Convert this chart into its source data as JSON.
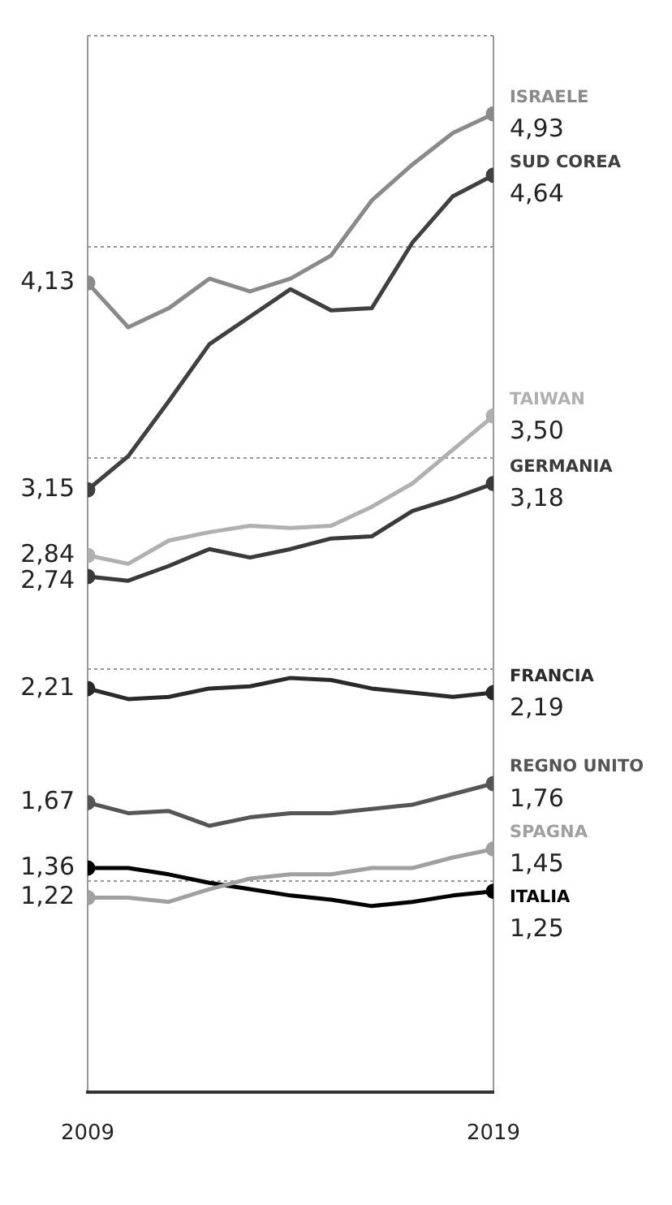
{
  "chart_data": {
    "type": "line",
    "x": [
      2009,
      2010,
      2011,
      2012,
      2013,
      2014,
      2015,
      2016,
      2017,
      2018,
      2019
    ],
    "xlim": [
      2009,
      2019
    ],
    "xticks": [
      2009,
      2019
    ],
    "ylim": [
      0.3,
      5.3
    ],
    "yticks": [
      {
        "value": 1.3,
        "label": null
      },
      {
        "value": 2.3,
        "label": null
      },
      {
        "value": 3.3,
        "label": null
      },
      {
        "value": 4.3,
        "label": null
      },
      {
        "value": 5.3,
        "label": null
      }
    ],
    "tick_labels": "x",
    "grid": true,
    "line_style": "solid",
    "legend": false,
    "series": [
      {
        "name": "ISRAELE",
        "color": "#8a8a8a",
        "values": [
          4.13,
          3.92,
          4.01,
          4.15,
          4.09,
          4.15,
          4.26,
          4.52,
          4.69,
          4.84,
          4.93
        ],
        "value_labels": [
          "4,13",
          null,
          null,
          null,
          null,
          null,
          null,
          null,
          null,
          null,
          "4,93"
        ]
      },
      {
        "name": "SUD COREA",
        "color": "#404040",
        "values": [
          3.15,
          3.31,
          3.57,
          3.84,
          3.97,
          4.1,
          4.0,
          4.01,
          4.32,
          4.54,
          4.64
        ],
        "value_labels": [
          "3,15",
          null,
          null,
          null,
          null,
          null,
          null,
          null,
          null,
          null,
          "4,64"
        ]
      },
      {
        "name": "TAIWAN",
        "color": "#b0b0b0",
        "values": [
          2.84,
          2.8,
          2.91,
          2.95,
          2.98,
          2.97,
          2.98,
          3.07,
          3.18,
          3.34,
          3.5
        ],
        "value_labels": [
          "2,84",
          null,
          null,
          null,
          null,
          null,
          null,
          null,
          null,
          null,
          "3,50"
        ]
      },
      {
        "name": "GERMANIA",
        "color": "#3a3a3a",
        "values": [
          2.74,
          2.72,
          2.79,
          2.87,
          2.83,
          2.87,
          2.92,
          2.93,
          3.05,
          3.11,
          3.18
        ],
        "value_labels": [
          "2,74",
          null,
          null,
          null,
          null,
          null,
          null,
          null,
          null,
          null,
          "3,18"
        ]
      },
      {
        "name": "FRANCIA",
        "color": "#2a2a2a",
        "values": [
          2.21,
          2.16,
          2.17,
          2.21,
          2.22,
          2.26,
          2.25,
          2.21,
          2.19,
          2.17,
          2.19
        ],
        "value_labels": [
          "2,21",
          null,
          null,
          null,
          null,
          null,
          null,
          null,
          null,
          null,
          "2,19"
        ]
      },
      {
        "name": "REGNO UNITO",
        "color": "#555555",
        "values": [
          1.67,
          1.62,
          1.63,
          1.56,
          1.6,
          1.62,
          1.62,
          1.64,
          1.66,
          1.71,
          1.76
        ],
        "value_labels": [
          "1,67",
          null,
          null,
          null,
          null,
          null,
          null,
          null,
          null,
          null,
          "1,76"
        ]
      },
      {
        "name": "SPAGNA",
        "color": "#a0a0a0",
        "values": [
          1.22,
          1.22,
          1.2,
          1.26,
          1.31,
          1.33,
          1.33,
          1.36,
          1.36,
          1.41,
          1.45
        ],
        "value_labels": [
          "1,22",
          null,
          null,
          null,
          null,
          null,
          null,
          null,
          null,
          null,
          "1,45"
        ]
      },
      {
        "name": "ITALIA",
        "color": "#000000",
        "values": [
          1.36,
          1.36,
          1.33,
          1.29,
          1.26,
          1.23,
          1.21,
          1.18,
          1.2,
          1.23,
          1.25
        ],
        "value_labels": [
          "1,36",
          null,
          null,
          null,
          null,
          null,
          null,
          null,
          null,
          null,
          "1,25"
        ]
      }
    ]
  }
}
